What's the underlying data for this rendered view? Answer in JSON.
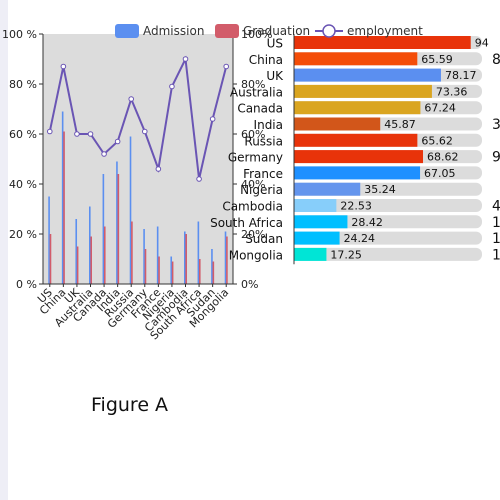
{
  "caption": "Figure A",
  "legend": [
    {
      "label": "Admission",
      "color": "#5b8ff0",
      "kind": "bar"
    },
    {
      "label": "Graduation",
      "color": "#d25c6a",
      "kind": "bar"
    },
    {
      "label": "employment",
      "color": "#6a55b4",
      "kind": "line"
    }
  ],
  "chart_data": [
    {
      "type": "bar+line",
      "categories": [
        "US",
        "China",
        "UK",
        "Australia",
        "Canada",
        "India",
        "Russia",
        "Germany",
        "France",
        "Nigeria",
        "Cambodia",
        "South Africa",
        "Sudan",
        "Mongolia"
      ],
      "series": [
        {
          "name": "Admission",
          "type": "bar",
          "axis": "left",
          "color": "#5b8ff0",
          "values": [
            0.35,
            0.69,
            0.26,
            0.31,
            0.44,
            0.49,
            0.59,
            0.22,
            0.23,
            0.11,
            0.21,
            0.25,
            0.14,
            0.21
          ]
        },
        {
          "name": "Graduation",
          "type": "bar",
          "axis": "left",
          "color": "#d25c6a",
          "values": [
            0.2,
            0.61,
            0.15,
            0.19,
            0.23,
            0.44,
            0.25,
            0.14,
            0.11,
            0.09,
            0.2,
            0.1,
            0.09,
            0.19
          ]
        },
        {
          "name": "employment",
          "type": "line",
          "axis": "right",
          "color": "#6a55b4",
          "values": [
            0.61,
            0.87,
            0.6,
            0.6,
            0.52,
            0.57,
            0.74,
            0.61,
            0.46,
            0.79,
            0.9,
            0.42,
            0.66,
            0.87
          ]
        }
      ],
      "y_left": {
        "ticks": [
          "0 %",
          "20 %",
          "40 %",
          "60 %",
          "80 %",
          "100 %"
        ],
        "ylim": [
          0,
          1
        ]
      },
      "y_right": {
        "ticks": [
          "0%",
          "20%",
          "40%",
          "60%",
          "80%",
          "100%"
        ],
        "ylim": [
          0,
          1
        ]
      },
      "grid": false,
      "legend_position": "top"
    },
    {
      "type": "bar",
      "orientation": "horizontal",
      "categories": [
        "US",
        "China",
        "UK",
        "Australia",
        "Canada",
        "India",
        "Russia",
        "Germany",
        "France",
        "Nigeria",
        "Cambodia",
        "South Africa",
        "Sudan",
        "Mongolia"
      ],
      "values": [
        94,
        65.59,
        78.17,
        73.36,
        67.24,
        45.87,
        65.62,
        68.62,
        67.05,
        35.24,
        22.53,
        28.42,
        24.24,
        17.25
      ],
      "labels": [
        "94",
        "65.59",
        "78.17",
        "73.36",
        "67.24",
        "45.87",
        "65.62",
        "68.62",
        "67.05",
        "35.24",
        "22.53",
        "28.42",
        "24.24",
        "17.25"
      ],
      "colors": [
        "#e8330a",
        "#f44d08",
        "#5b8ff0",
        "#daa520",
        "#daa520",
        "#d2561a",
        "#e8330a",
        "#e8330a",
        "#1e90ff",
        "#6495ed",
        "#87cefa",
        "#00bfff",
        "#00bfff",
        "#00e5d6"
      ],
      "xlim": [
        0,
        100
      ]
    }
  ],
  "side_values": [
    "8",
    "3",
    "9",
    "4",
    "1",
    "1",
    "1"
  ]
}
